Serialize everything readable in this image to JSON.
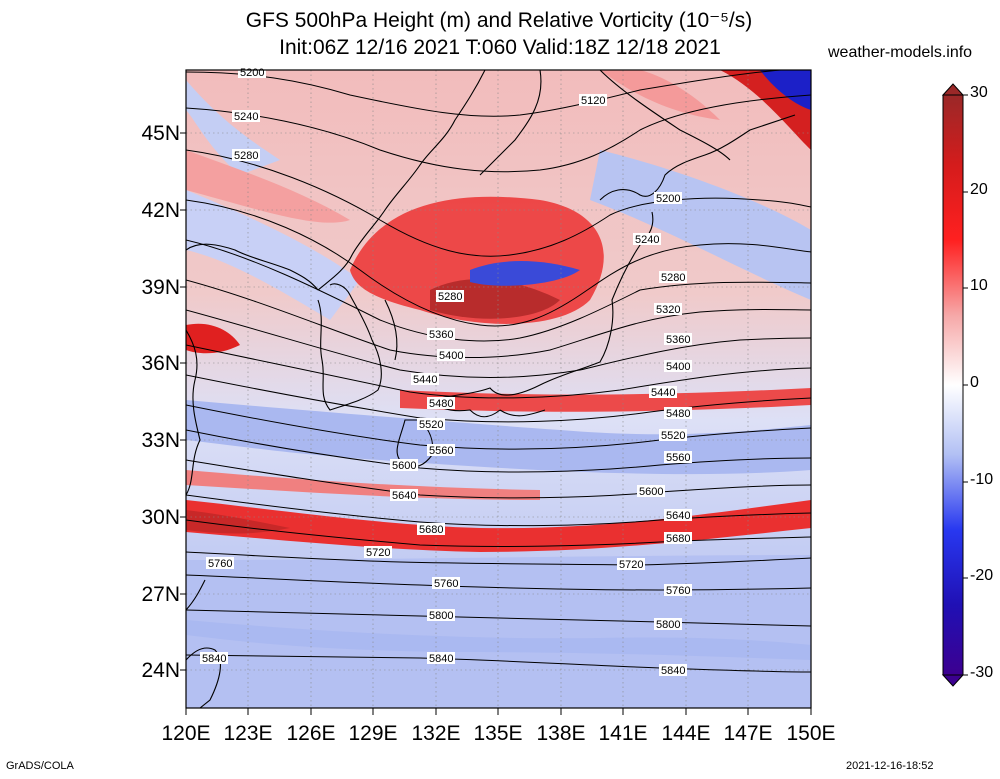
{
  "title": {
    "line1": "GFS 500hPa Height (m) and Relative Vorticity (10⁻⁵/s)",
    "line2": "Init:06Z 12/16 2021 T:060 Valid:18Z 12/18 2021"
  },
  "site": "weather-models.info",
  "lat_labels": [
    "45N",
    "42N",
    "39N",
    "36N",
    "33N",
    "30N",
    "27N",
    "24N"
  ],
  "lon_labels": [
    "120E",
    "123E",
    "126E",
    "129E",
    "132E",
    "135E",
    "138E",
    "141E",
    "144E",
    "147E",
    "150E"
  ],
  "colorbar": {
    "labels": [
      "30",
      "20",
      "10",
      "0",
      "-10",
      "-20",
      "-30"
    ],
    "colors": {
      "neg_deep": "#3c0096",
      "neg": "#2030e0",
      "neg_light": "#b6c4f4",
      "zero": "#ffffff",
      "pos_light": "#f6b4b4",
      "pos": "#e81414",
      "pos_deep": "#aa2a2a"
    }
  },
  "contour_labels": {
    "left": [
      "5200",
      "5240",
      "5280",
      "5280",
      "5360",
      "5400",
      "5440",
      "5480",
      "5520",
      "5560",
      "5600",
      "5640",
      "5680",
      "5720",
      "5760",
      "5760",
      "5800",
      "5840",
      "5840"
    ],
    "right": [
      "5120",
      "5200",
      "5240",
      "5280",
      "5320",
      "5360",
      "5400",
      "5440",
      "5480",
      "5520",
      "5560",
      "5600",
      "5640",
      "5680",
      "5720",
      "5760",
      "5800",
      "5840"
    ]
  },
  "footer": {
    "left": "GrADS/COLA",
    "right": "2021-12-16-18:52"
  }
}
